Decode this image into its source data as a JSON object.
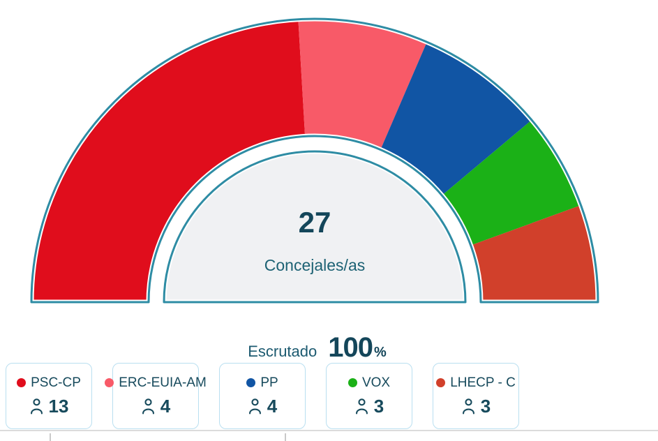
{
  "chart_data": {
    "type": "donut-gauge",
    "title": "",
    "total_value": "27",
    "total_label": "Concejales/as",
    "total_seats": 27,
    "start_angle_deg": 180,
    "end_angle_deg": 0,
    "legend_position": "bottom",
    "series": [
      {
        "name": "PSC-CP",
        "seats": 13,
        "color": "#E00D1C"
      },
      {
        "name": "ERC-EUIA-AM",
        "seats": 4,
        "color": "#F85A68"
      },
      {
        "name": "PP",
        "seats": 4,
        "color": "#1155A4"
      },
      {
        "name": "VOX",
        "seats": 3,
        "color": "#1BB117"
      },
      {
        "name": "LHECP - C",
        "seats": 3,
        "color": "#D1402B"
      }
    ],
    "colors": {
      "arc_outline": "#2E8CA4",
      "inner_fill": "#F0F1F3",
      "center_value_text": "#14465A",
      "center_label_text": "#1D6274"
    }
  },
  "scrutiny": {
    "label": "Escrutado",
    "value": "100",
    "unit": "%"
  }
}
